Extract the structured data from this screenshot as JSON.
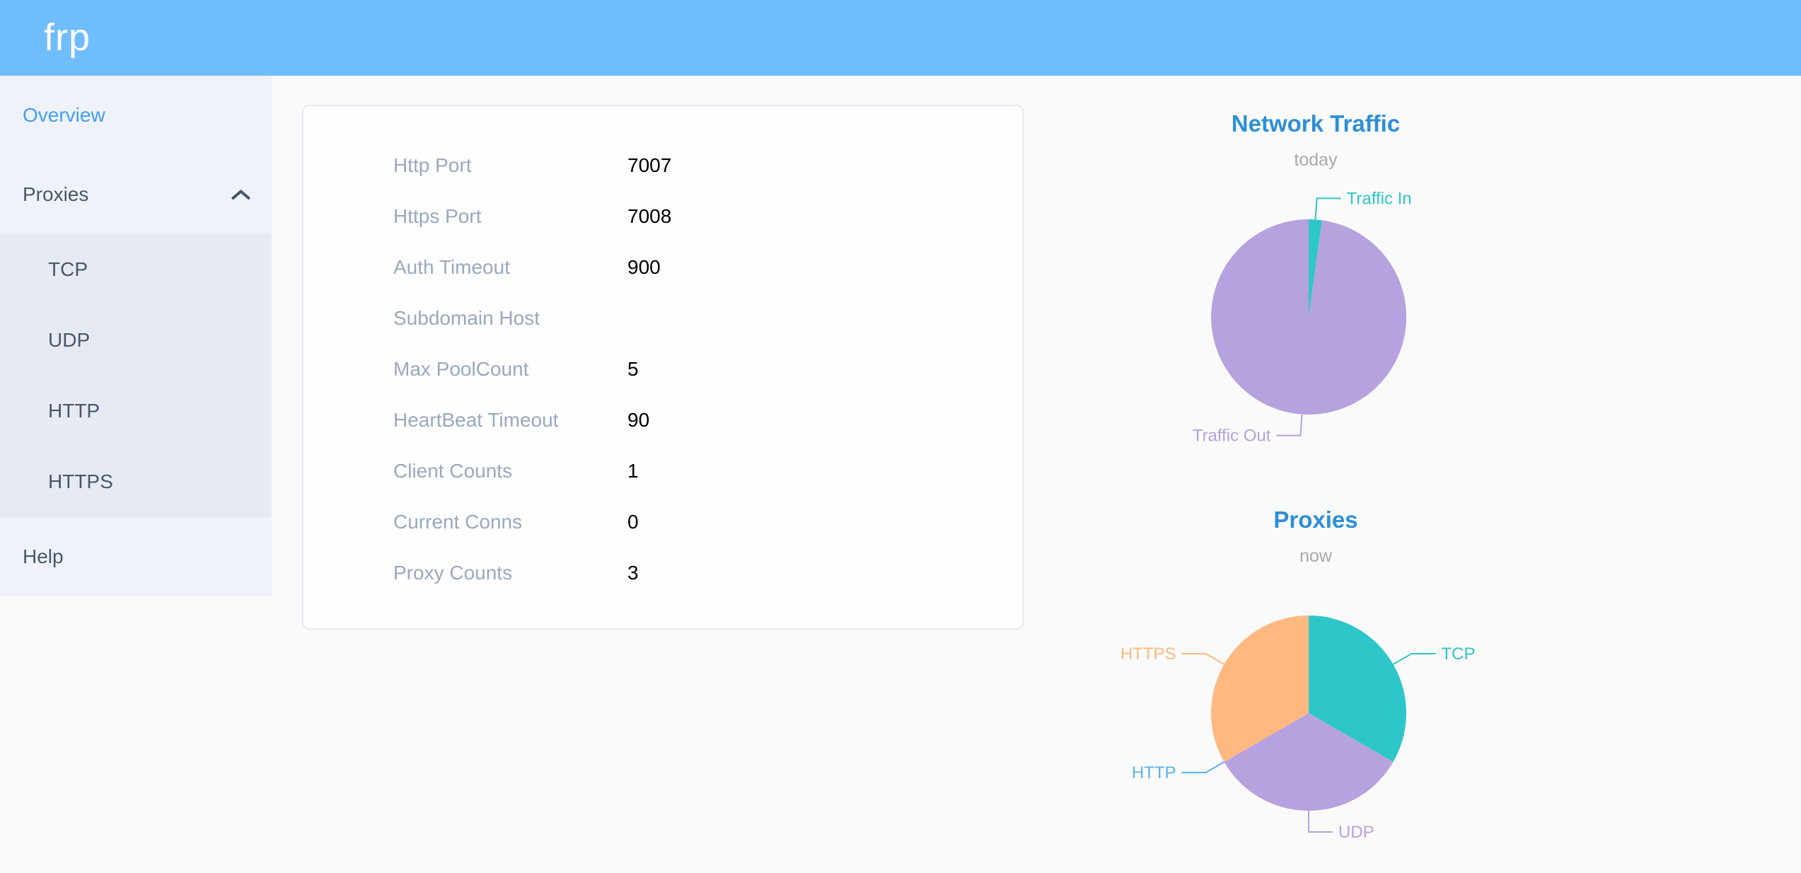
{
  "header": {
    "logo": "frp"
  },
  "sidebar": {
    "overview": "Overview",
    "proxies": "Proxies",
    "tcp": "TCP",
    "udp": "UDP",
    "http": "HTTP",
    "https": "HTTPS",
    "help": "Help",
    "active_item": "Overview"
  },
  "overview_panel": {
    "rows": [
      {
        "label": "Http Port",
        "value": "7007"
      },
      {
        "label": "Https Port",
        "value": "7008"
      },
      {
        "label": "Auth Timeout",
        "value": "900"
      },
      {
        "label": "Subdomain Host",
        "value": ""
      },
      {
        "label": "Max PoolCount",
        "value": "5"
      },
      {
        "label": "HeartBeat Timeout",
        "value": "90"
      },
      {
        "label": "Client Counts",
        "value": "1"
      },
      {
        "label": "Current Conns",
        "value": "0"
      },
      {
        "label": "Proxy Counts",
        "value": "3"
      }
    ]
  },
  "chart_data": [
    {
      "type": "pie",
      "title": "Network Traffic",
      "subtitle": "today",
      "legend_position": "none",
      "value_unit": "percent of circle (estimated from pixels)",
      "series": [
        {
          "name": "Traffic In",
          "value": 2.2,
          "color": "#2ec7c9"
        },
        {
          "name": "Traffic Out",
          "value": 97.8,
          "color": "#b6a2de"
        }
      ]
    },
    {
      "type": "pie",
      "title": "Proxies",
      "subtitle": "now",
      "legend_position": "none",
      "value_unit": "proxy count",
      "series": [
        {
          "name": "TCP",
          "value": 1,
          "color": "#2ec7c9"
        },
        {
          "name": "UDP",
          "value": 1,
          "color": "#b6a2de"
        },
        {
          "name": "HTTP",
          "value": 0,
          "color": "#5ab1ef"
        },
        {
          "name": "HTTPS",
          "value": 1,
          "color": "#ffb980"
        }
      ]
    }
  ],
  "colors": {
    "header_bg": "#6fbdfc",
    "sidebar_bg": "#eff2f8",
    "submenu_bg": "#e7eaf3",
    "menu_text": "#48576a",
    "menu_active": "#409eff",
    "panel_border": "#e6e8f5",
    "row_label": "#99a9bf",
    "row_value": "#000000",
    "chart_title": "#2d8fd8",
    "chart_subtitle": "#a9a9a9",
    "page_bg": "#fafafa"
  }
}
